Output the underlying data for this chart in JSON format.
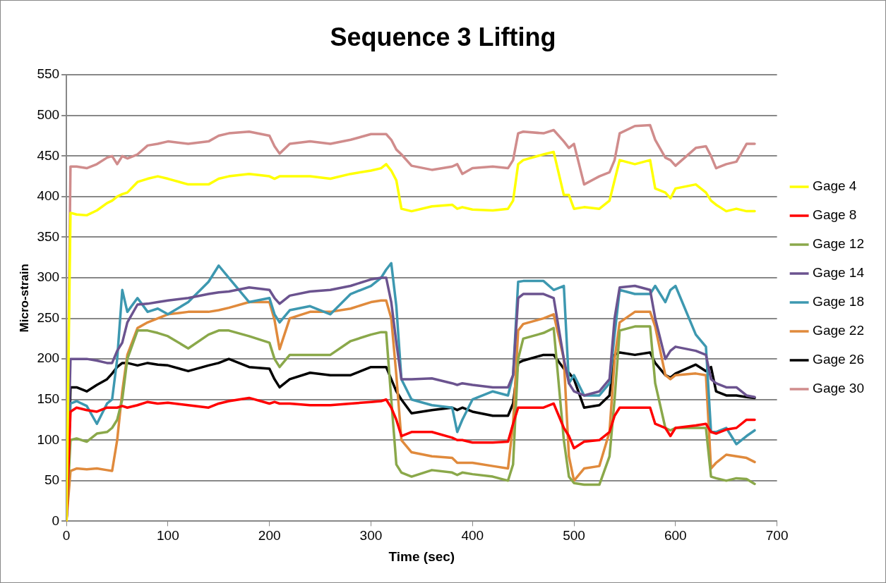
{
  "chart_data": {
    "type": "line",
    "title": "Sequence 3 Lifting",
    "xlabel": "Time (sec)",
    "ylabel": "Micro-strain",
    "x": [
      0,
      4,
      10,
      20,
      30,
      40,
      45,
      50,
      55,
      60,
      70,
      80,
      90,
      100,
      120,
      140,
      150,
      160,
      180,
      200,
      205,
      210,
      220,
      240,
      260,
      280,
      300,
      310,
      315,
      320,
      325,
      330,
      340,
      360,
      380,
      385,
      390,
      400,
      420,
      435,
      440,
      445,
      450,
      470,
      480,
      490,
      495,
      500,
      510,
      525,
      535,
      540,
      545,
      560,
      575,
      580,
      590,
      595,
      600,
      620,
      630,
      635,
      640,
      650,
      660,
      670,
      678
    ],
    "xlim": [
      0,
      700
    ],
    "xticks": [
      0,
      100,
      200,
      300,
      400,
      500,
      600,
      700
    ],
    "ylim": [
      0,
      550
    ],
    "yticks": [
      0,
      50,
      100,
      150,
      200,
      250,
      300,
      350,
      400,
      450,
      500,
      550
    ],
    "grid": "y",
    "legend": "right",
    "marker": "none",
    "line_style": "solid",
    "series": [
      {
        "name": "Gage 4",
        "color": "#ffff00",
        "values": [
          0,
          380,
          378,
          377,
          383,
          392,
          395,
          400,
          403,
          405,
          418,
          422,
          425,
          422,
          415,
          415,
          422,
          425,
          428,
          425,
          422,
          425,
          425,
          425,
          422,
          428,
          432,
          435,
          440,
          432,
          420,
          385,
          382,
          388,
          390,
          385,
          387,
          384,
          383,
          385,
          395,
          440,
          445,
          452,
          455,
          402,
          402,
          385,
          387,
          385,
          395,
          420,
          445,
          440,
          445,
          410,
          405,
          398,
          410,
          415,
          405,
          395,
          390,
          382,
          385,
          382,
          382
        ]
      },
      {
        "name": "Gage 8",
        "color": "#ff0000",
        "values": [
          0,
          135,
          140,
          137,
          135,
          140,
          140,
          140,
          142,
          140,
          143,
          147,
          145,
          146,
          143,
          140,
          145,
          148,
          152,
          145,
          147,
          145,
          145,
          143,
          143,
          145,
          147,
          148,
          150,
          140,
          125,
          105,
          110,
          110,
          103,
          100,
          100,
          97,
          97,
          98,
          120,
          140,
          140,
          140,
          145,
          115,
          105,
          90,
          98,
          100,
          110,
          130,
          140,
          140,
          140,
          120,
          115,
          105,
          115,
          118,
          120,
          110,
          108,
          113,
          115,
          125,
          125
        ]
      },
      {
        "name": "Gage 12",
        "color": "#8aa84a",
        "values": [
          0,
          100,
          102,
          98,
          108,
          110,
          115,
          125,
          150,
          200,
          235,
          235,
          232,
          228,
          213,
          230,
          235,
          235,
          228,
          220,
          200,
          190,
          205,
          205,
          205,
          222,
          230,
          233,
          233,
          150,
          70,
          60,
          55,
          63,
          60,
          57,
          60,
          58,
          55,
          50,
          70,
          200,
          225,
          232,
          238,
          100,
          55,
          47,
          45,
          45,
          80,
          150,
          235,
          240,
          240,
          170,
          115,
          112,
          115,
          115,
          115,
          55,
          53,
          50,
          53,
          52,
          46
        ]
      },
      {
        "name": "Gage 14",
        "color": "#6b538f",
        "values": [
          0,
          200,
          200,
          200,
          198,
          195,
          195,
          210,
          220,
          245,
          267,
          268,
          270,
          272,
          275,
          280,
          282,
          283,
          288,
          285,
          275,
          268,
          278,
          283,
          285,
          290,
          298,
          300,
          300,
          270,
          220,
          175,
          175,
          176,
          170,
          168,
          170,
          168,
          165,
          165,
          180,
          275,
          280,
          280,
          275,
          200,
          170,
          160,
          155,
          160,
          175,
          250,
          288,
          290,
          285,
          250,
          200,
          210,
          215,
          210,
          205,
          175,
          170,
          165,
          165,
          155,
          153
        ]
      },
      {
        "name": "Gage 18",
        "color": "#3d98b0",
        "values": [
          0,
          145,
          148,
          142,
          120,
          145,
          150,
          200,
          285,
          258,
          275,
          258,
          262,
          255,
          270,
          295,
          315,
          300,
          270,
          275,
          255,
          245,
          260,
          265,
          255,
          280,
          290,
          300,
          310,
          318,
          265,
          175,
          150,
          143,
          140,
          110,
          125,
          150,
          160,
          155,
          180,
          295,
          296,
          296,
          285,
          290,
          170,
          180,
          155,
          155,
          170,
          230,
          285,
          280,
          280,
          290,
          270,
          285,
          290,
          230,
          215,
          110,
          110,
          115,
          95,
          105,
          112
        ]
      },
      {
        "name": "Gage 22",
        "color": "#e08a3c",
        "values": [
          0,
          62,
          65,
          64,
          65,
          63,
          62,
          100,
          160,
          205,
          238,
          245,
          250,
          255,
          258,
          258,
          260,
          263,
          270,
          270,
          248,
          212,
          250,
          258,
          258,
          262,
          270,
          272,
          272,
          250,
          180,
          100,
          85,
          80,
          78,
          72,
          72,
          72,
          68,
          65,
          120,
          235,
          243,
          250,
          255,
          200,
          80,
          50,
          65,
          68,
          110,
          200,
          245,
          258,
          258,
          240,
          180,
          175,
          180,
          182,
          180,
          65,
          72,
          82,
          80,
          78,
          73
        ]
      },
      {
        "name": "Gage 26",
        "color": "#000000",
        "values": [
          0,
          165,
          165,
          160,
          168,
          175,
          182,
          190,
          195,
          195,
          192,
          195,
          193,
          192,
          185,
          192,
          195,
          200,
          190,
          188,
          175,
          165,
          175,
          183,
          180,
          180,
          190,
          190,
          190,
          175,
          160,
          150,
          133,
          137,
          140,
          137,
          140,
          135,
          130,
          130,
          145,
          195,
          198,
          205,
          205,
          188,
          183,
          175,
          140,
          143,
          155,
          205,
          208,
          205,
          208,
          195,
          180,
          177,
          182,
          193,
          185,
          190,
          160,
          155,
          155,
          153,
          152
        ]
      },
      {
        "name": "Gage 30",
        "color": "#d08c8c",
        "values": [
          0,
          437,
          437,
          435,
          440,
          448,
          450,
          440,
          450,
          447,
          452,
          463,
          465,
          468,
          465,
          468,
          475,
          478,
          480,
          475,
          462,
          453,
          465,
          468,
          465,
          470,
          477,
          477,
          477,
          470,
          458,
          452,
          438,
          433,
          437,
          440,
          428,
          435,
          437,
          435,
          445,
          478,
          480,
          478,
          482,
          468,
          460,
          465,
          415,
          425,
          430,
          445,
          478,
          487,
          488,
          470,
          448,
          445,
          438,
          460,
          462,
          450,
          435,
          440,
          443,
          465,
          465
        ]
      }
    ]
  }
}
